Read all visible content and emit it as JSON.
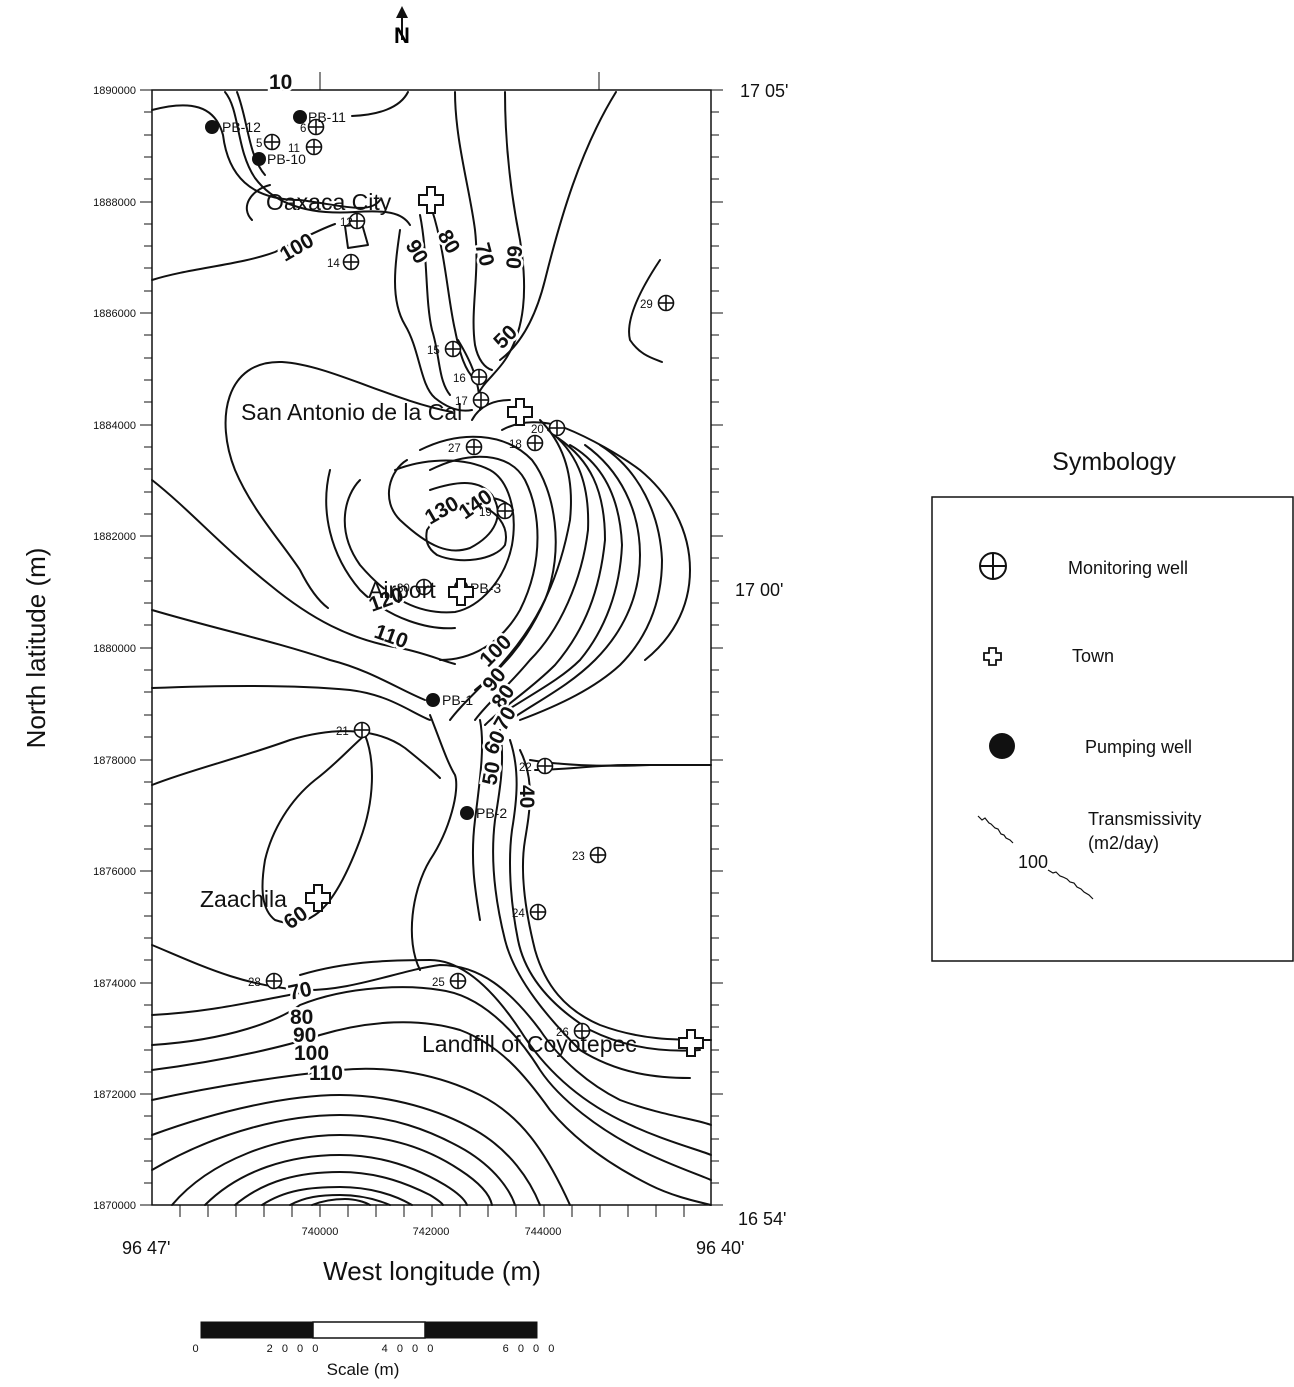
{
  "north_arrow": {
    "label": "N"
  },
  "axes": {
    "ylabel": "North latitude (m)",
    "xlabel": "West  longitude (m)",
    "y_ticks": [
      "1890000",
      "1888000",
      "1886000",
      "1884000",
      "1882000",
      "1880000",
      "1878000",
      "1876000",
      "1874000",
      "1872000",
      "1870000"
    ],
    "x_ticks": [
      "740000",
      "742000",
      "744000"
    ]
  },
  "geo_labels": {
    "top_right": "17 05'",
    "mid_right": "17 00'",
    "bottom_right": "16 54'",
    "bottom_left": "96 47'",
    "bottom_right_lon": "96 40'"
  },
  "contour_labels": [
    "10",
    "100",
    "90",
    "80",
    "70",
    "60",
    "50",
    "130",
    "140",
    "120",
    "110",
    "100",
    "90",
    "80",
    "70",
    "60",
    "50",
    "40",
    "60",
    "70",
    "80",
    "90",
    "100",
    "110"
  ],
  "towns": [
    "Oaxaca City",
    "San Antonio de la Cal",
    "Airport",
    "Zaachila",
    "Landfill of Coyotepec"
  ],
  "monitoring_wells": [
    "5",
    "6",
    "11",
    "12",
    "14",
    "15",
    "16",
    "17",
    "18",
    "19",
    "20",
    "21",
    "22",
    "23",
    "24",
    "25",
    "26",
    "27",
    "28",
    "29",
    "30"
  ],
  "pumping_wells": [
    "PB-12",
    "PB-11",
    "PB-10",
    "PB-3",
    "PB-1",
    "PB-2"
  ],
  "legend": {
    "title": "Symbology",
    "items": {
      "monitoring": "Monitoring well",
      "town": "Town",
      "pumping": "Pumping well",
      "transmissivity_line1": "Transmissivity",
      "transmissivity_line2": "(m2/day)",
      "transmissivity_sample": "100"
    }
  },
  "scale_bar": {
    "ticks": [
      "0",
      "2 0 0 0",
      "4 0 0 0",
      "6 0 0 0"
    ],
    "title": "Scale (m)"
  },
  "colors": {
    "ink": "#111111",
    "background": "#ffffff"
  }
}
